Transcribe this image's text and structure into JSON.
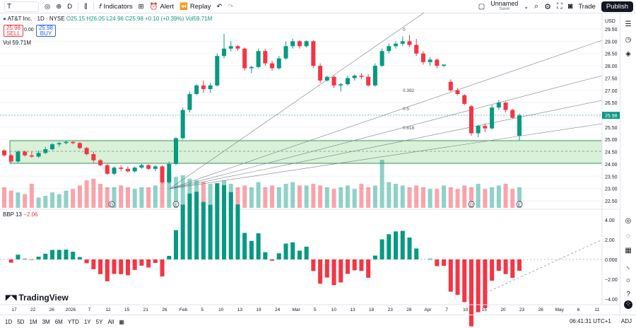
{
  "toolbar": {
    "symbol": "T",
    "interval": "D",
    "indicators": "Indicators",
    "alert": "Alert",
    "replay": "Replay",
    "layout_name": "Unnamed",
    "layout_sub": "Save",
    "trade": "Trade",
    "publish": "Publish"
  },
  "legend": {
    "title": "AT&T Inc. · 1D · NYSE",
    "ohlc": "O25.15 H26.05 L24.96 C25.98 +0.10 (+0.39%) Vol59.71M",
    "sell_price": "25.98",
    "sell_label": "SELL",
    "spread": "0.00",
    "buy_price": "25.98",
    "buy_label": "BUY",
    "vol_label": "Vol",
    "vol_value": "59.71M"
  },
  "indicator": {
    "name": "BBP 13",
    "value": "−2.06"
  },
  "axis": {
    "currency": "USD",
    "price_ticks": [
      "29.50",
      "29.00",
      "28.50",
      "28.00",
      "27.50",
      "27.00",
      "26.50",
      "26.00",
      "25.50",
      "25.00",
      "24.50",
      "24.00",
      "23.50",
      "23.00",
      "22.50"
    ],
    "current_price": "25.98",
    "bbp_ticks": [
      "4.00",
      "2.00",
      "0.000",
      "−2.00",
      "−4.00"
    ],
    "time_ticks": [
      "17",
      "22",
      "26",
      "2026",
      "7",
      "12",
      "15",
      "21",
      "26",
      "Feb",
      "5",
      "10",
      "13",
      "19",
      "24",
      "Mar",
      "5",
      "10",
      "13",
      "18",
      "23",
      "26",
      "Apr",
      "7",
      "10",
      "15",
      "20",
      "23",
      "28",
      "May",
      "6",
      "11"
    ]
  },
  "fib_labels": [
    "0",
    "0.382",
    "0.5",
    "0.618"
  ],
  "bottom": {
    "ranges": [
      "1D",
      "5D",
      "1M",
      "3M",
      "6M",
      "YTD",
      "1Y",
      "5Y",
      "All"
    ],
    "time": "06:41:31 UTC+1",
    "adj": "ADJ"
  },
  "brand": "TradingView",
  "colors": {
    "up": "#089981",
    "down": "#f23645",
    "zone": "#c8ebc8",
    "accent": "#2962ff"
  },
  "chart_data": {
    "type": "candlestick",
    "title": "AT&T Inc. · 1D · NYSE",
    "ylim": [
      22.4,
      30.0
    ],
    "candles": [
      [
        24.55,
        24.6,
        24.3,
        24.35
      ],
      [
        24.35,
        24.4,
        24.05,
        24.1
      ],
      [
        24.1,
        24.55,
        24.05,
        24.5
      ],
      [
        24.5,
        24.55,
        24.3,
        24.35
      ],
      [
        24.35,
        24.5,
        24.25,
        24.3
      ],
      [
        24.3,
        24.55,
        24.25,
        24.45
      ],
      [
        24.45,
        24.7,
        24.4,
        24.6
      ],
      [
        24.6,
        24.85,
        24.55,
        24.8
      ],
      [
        24.8,
        24.9,
        24.7,
        24.85
      ],
      [
        24.85,
        24.95,
        24.8,
        24.9
      ],
      [
        24.9,
        24.92,
        24.8,
        24.85
      ],
      [
        24.85,
        24.9,
        24.6,
        24.65
      ],
      [
        24.65,
        24.7,
        24.35,
        24.4
      ],
      [
        24.4,
        24.5,
        24.05,
        24.15
      ],
      [
        24.15,
        24.2,
        23.9,
        23.95
      ],
      [
        23.95,
        24.0,
        23.55,
        23.6
      ],
      [
        23.6,
        23.9,
        23.55,
        23.85
      ],
      [
        23.85,
        23.95,
        23.7,
        23.8
      ],
      [
        23.8,
        23.9,
        23.65,
        23.7
      ],
      [
        23.7,
        23.9,
        23.65,
        23.85
      ],
      [
        23.85,
        24.0,
        23.8,
        23.95
      ],
      [
        23.95,
        24.0,
        23.75,
        23.8
      ],
      [
        23.8,
        23.95,
        23.7,
        23.9
      ],
      [
        23.9,
        23.95,
        23.2,
        23.25
      ],
      [
        23.25,
        24.1,
        23.2,
        24.0
      ],
      [
        24.0,
        25.1,
        23.95,
        25.05
      ],
      [
        25.05,
        26.3,
        25.0,
        26.2
      ],
      [
        26.2,
        26.95,
        26.1,
        26.85
      ],
      [
        26.85,
        27.25,
        26.8,
        27.2
      ],
      [
        27.2,
        27.4,
        26.9,
        27.05
      ],
      [
        27.05,
        27.3,
        26.9,
        27.2
      ],
      [
        27.2,
        28.5,
        27.15,
        28.4
      ],
      [
        28.4,
        29.3,
        28.3,
        28.7
      ],
      [
        28.7,
        29.0,
        28.6,
        28.8
      ],
      [
        28.8,
        28.85,
        28.6,
        28.7
      ],
      [
        28.7,
        28.75,
        27.8,
        27.9
      ],
      [
        27.9,
        28.0,
        27.7,
        27.95
      ],
      [
        27.95,
        28.7,
        27.9,
        28.6
      ],
      [
        28.6,
        28.7,
        28.0,
        28.1
      ],
      [
        28.1,
        28.2,
        27.8,
        27.9
      ],
      [
        27.9,
        28.4,
        27.85,
        28.3
      ],
      [
        28.3,
        29.0,
        28.25,
        28.8
      ],
      [
        28.8,
        29.1,
        28.7,
        29.0
      ],
      [
        29.0,
        29.05,
        28.7,
        28.8
      ],
      [
        28.8,
        29.05,
        28.75,
        29.0
      ],
      [
        29.0,
        29.05,
        27.9,
        28.0
      ],
      [
        28.0,
        28.1,
        27.3,
        27.4
      ],
      [
        27.4,
        27.6,
        27.35,
        27.55
      ],
      [
        27.55,
        27.6,
        27.1,
        27.2
      ],
      [
        27.2,
        27.3,
        26.95,
        27.25
      ],
      [
        27.25,
        27.6,
        27.2,
        27.5
      ],
      [
        27.5,
        27.65,
        27.4,
        27.6
      ],
      [
        27.6,
        27.7,
        27.45,
        27.55
      ],
      [
        27.55,
        27.65,
        27.15,
        27.2
      ],
      [
        27.2,
        28.1,
        27.15,
        28.0
      ],
      [
        28.0,
        28.7,
        27.95,
        28.6
      ],
      [
        28.6,
        28.9,
        28.5,
        28.8
      ],
      [
        28.8,
        29.0,
        28.7,
        28.9
      ],
      [
        28.9,
        29.2,
        28.8,
        29.0
      ],
      [
        29.0,
        29.25,
        28.75,
        28.85
      ],
      [
        28.85,
        29.1,
        28.4,
        28.5
      ],
      [
        28.5,
        28.6,
        28.05,
        28.15
      ],
      [
        28.15,
        28.35,
        28.0,
        28.25
      ],
      [
        28.25,
        28.3,
        27.9,
        28.0
      ],
      [
        28.0,
        28.05,
        27.95,
        28.05
      ],
      [
        27.35,
        27.45,
        26.95,
        27.0
      ],
      [
        27.0,
        27.1,
        26.8,
        26.85
      ],
      [
        26.8,
        26.85,
        26.4,
        26.45
      ],
      [
        26.35,
        26.4,
        25.15,
        25.25
      ],
      [
        25.25,
        25.6,
        25.1,
        25.55
      ],
      [
        25.55,
        25.65,
        25.3,
        25.45
      ],
      [
        25.45,
        26.4,
        25.4,
        26.3
      ],
      [
        26.3,
        26.6,
        26.2,
        26.5
      ],
      [
        26.5,
        26.55,
        26.1,
        26.2
      ],
      [
        26.2,
        26.25,
        25.85,
        25.88
      ],
      [
        25.15,
        26.05,
        24.96,
        25.98
      ]
    ],
    "volume": [
      12,
      10,
      9,
      8,
      14,
      6,
      7,
      9,
      8,
      10,
      11,
      13,
      16,
      17,
      14,
      12,
      12,
      13,
      12,
      11,
      12,
      12,
      13,
      16,
      20,
      18,
      19,
      17,
      16,
      15,
      14,
      12,
      16,
      14,
      12,
      13,
      12,
      15,
      12,
      13,
      12,
      14,
      15,
      13,
      13,
      14,
      13,
      12,
      11,
      12,
      13,
      11,
      14,
      12,
      13,
      28,
      15,
      14,
      13,
      12,
      13,
      12,
      11,
      11,
      13,
      12,
      11,
      13,
      12,
      14,
      11,
      12,
      13,
      14,
      11,
      12
    ]
  }
}
